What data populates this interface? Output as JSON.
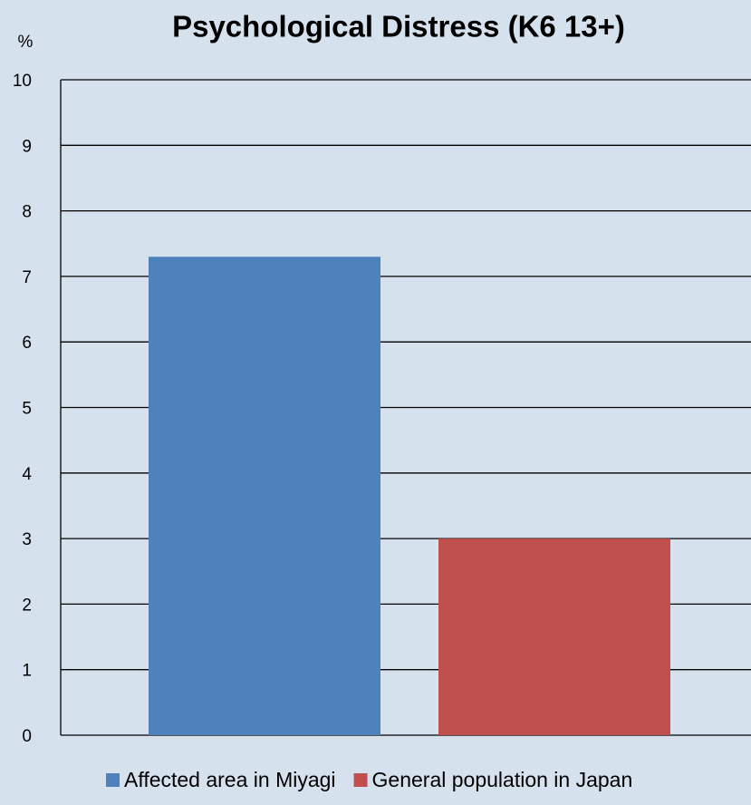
{
  "chart_data": {
    "type": "bar",
    "title": "Psychological Distress (K6 13+)",
    "ylabel": "%",
    "categories": [
      null
    ],
    "series": [
      {
        "name": "Affected area in Miyagi",
        "color": "#4f81bd",
        "values": [
          7.3
        ]
      },
      {
        "name": "General population in Japan",
        "color": "#c0504d",
        "values": [
          3.0
        ]
      }
    ],
    "ylim": [
      0,
      10
    ],
    "yticks": [
      0,
      1,
      2,
      3,
      4,
      5,
      6,
      7,
      8,
      9,
      10
    ],
    "grid": true,
    "legend": "bottom"
  }
}
